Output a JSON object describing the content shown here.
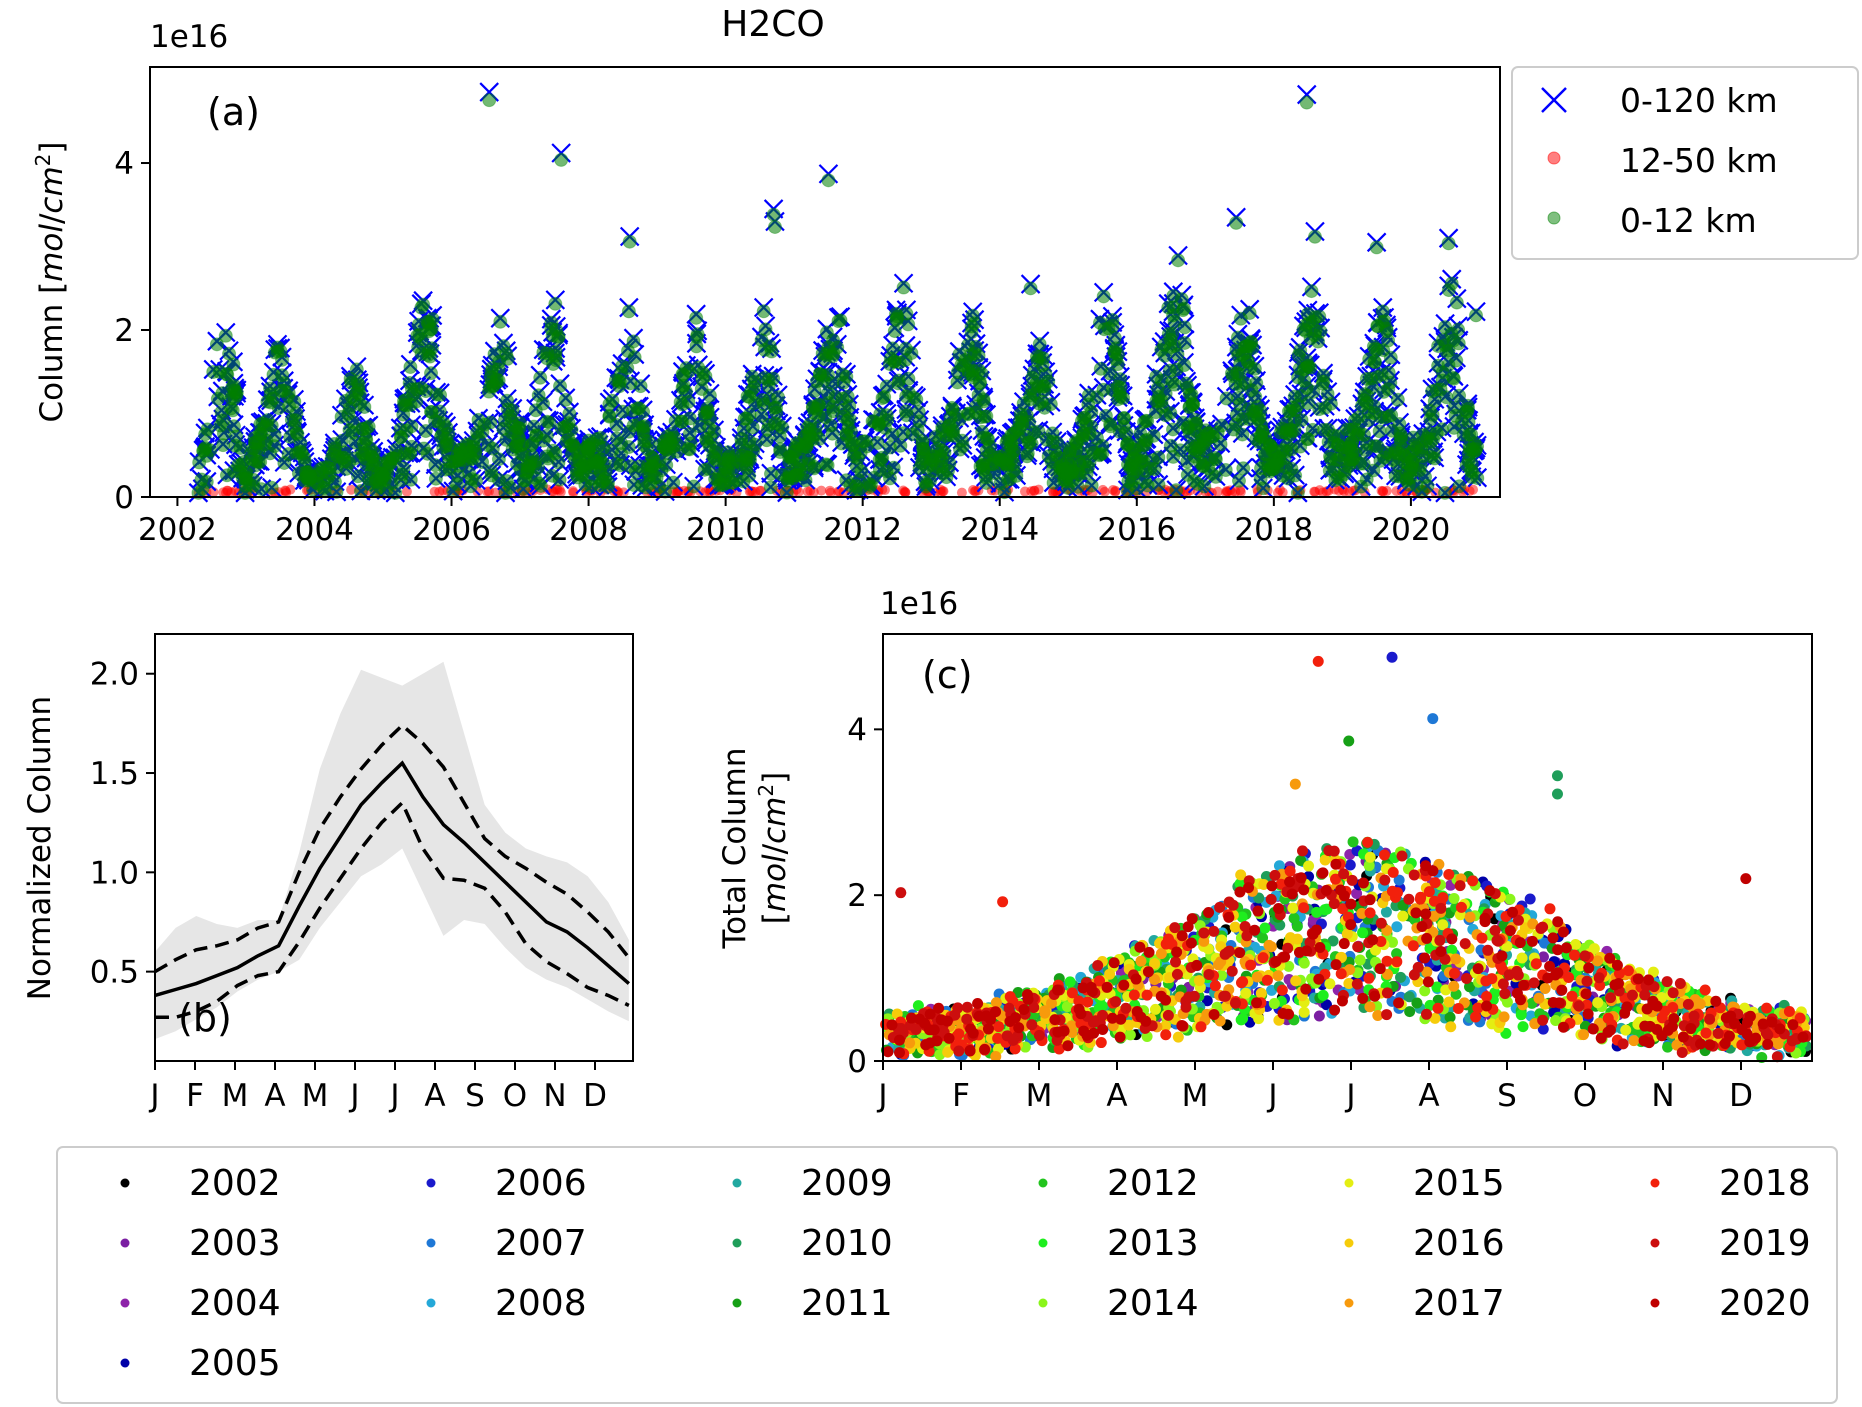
{
  "figure_title": "H2CO",
  "colors": {
    "total": "#0000ff",
    "strat": "#ff0000",
    "trop": "#008000",
    "band": "#e6e6e6"
  },
  "chart_data": [
    {
      "panel": "a",
      "type": "scatter",
      "panel_label": "(a)",
      "ylabel": "Column [mol/cm²]",
      "y_multiplier": "1e16",
      "xlim": [
        2001.6,
        2021.3
      ],
      "ylim": [
        0,
        5.15
      ],
      "xticks": [
        "2002",
        "2004",
        "2006",
        "2008",
        "2010",
        "2012",
        "2014",
        "2016",
        "2018",
        "2020"
      ],
      "yticks": [
        "0",
        "2",
        "4"
      ],
      "legend": {
        "position": "outside right",
        "entries": [
          {
            "label": "0-120 km",
            "marker": "x",
            "color": "#0000ff"
          },
          {
            "label": "12-50 km",
            "marker": "o",
            "color": "#ff0000"
          },
          {
            "label": "0-12 km",
            "marker": "o",
            "color": "#008000"
          }
        ]
      },
      "season_envelope": {
        "x": [
          2002.3,
          2002.7,
          2003.0,
          2003.5,
          2003.9,
          2004.2,
          2004.6,
          2004.9,
          2005.2,
          2005.6,
          2006.0,
          2006.3,
          2006.7,
          2007.1,
          2007.5,
          2007.8,
          2008.2,
          2008.6,
          2008.9,
          2009.2,
          2009.6,
          2009.9,
          2010.2,
          2010.6,
          2010.9,
          2011.2,
          2011.6,
          2011.9,
          2012.2,
          2012.6,
          2012.9,
          2013.2,
          2013.6,
          2013.9,
          2014.2,
          2014.6,
          2014.9,
          2015.2,
          2015.6,
          2015.9,
          2016.2,
          2016.6,
          2016.9,
          2017.2,
          2017.6,
          2017.9,
          2018.2,
          2018.6,
          2018.9,
          2019.2,
          2019.6,
          2019.9,
          2020.2,
          2020.6,
          2020.9
        ],
        "y": [
          0.5,
          2.6,
          0.3,
          2.0,
          0.3,
          0.4,
          1.7,
          0.4,
          0.6,
          2.8,
          0.5,
          0.7,
          2.2,
          0.5,
          2.5,
          0.6,
          0.8,
          2.3,
          0.5,
          0.9,
          2.3,
          0.4,
          0.8,
          2.4,
          0.5,
          0.9,
          2.6,
          0.6,
          1.0,
          2.8,
          0.6,
          0.9,
          2.5,
          0.5,
          0.8,
          2.1,
          0.4,
          0.9,
          2.8,
          0.6,
          1.1,
          3.0,
          0.7,
          1.0,
          2.5,
          0.6,
          1.0,
          2.8,
          0.7,
          1.0,
          2.5,
          0.6,
          0.9,
          3.0,
          0.7
        ]
      },
      "outliers": [
        {
          "x": 2006.55,
          "y": 4.85
        },
        {
          "x": 2007.6,
          "y": 4.12
        },
        {
          "x": 2008.6,
          "y": 3.12
        },
        {
          "x": 2010.7,
          "y": 3.45
        },
        {
          "x": 2010.72,
          "y": 3.3
        },
        {
          "x": 2011.5,
          "y": 3.87
        },
        {
          "x": 2014.45,
          "y": 2.55
        },
        {
          "x": 2017.45,
          "y": 3.35
        },
        {
          "x": 2018.48,
          "y": 4.82
        },
        {
          "x": 2018.6,
          "y": 3.18
        },
        {
          "x": 2019.5,
          "y": 3.05
        },
        {
          "x": 2020.55,
          "y": 3.1
        },
        {
          "x": 2020.95,
          "y": 2.22
        }
      ],
      "strat_level": 0.05
    },
    {
      "panel": "b",
      "type": "line",
      "panel_label": "(b)",
      "ylabel": "Normalized Column",
      "xlim": [
        0,
        11.6
      ],
      "ylim": [
        0.05,
        2.2
      ],
      "xticks": [
        "J",
        "F",
        "M",
        "A",
        "M",
        "J",
        "J",
        "A",
        "S",
        "O",
        "N",
        "D"
      ],
      "yticks": [
        "0.5",
        "1.0",
        "1.5",
        "2.0"
      ],
      "x": [
        0,
        0.5,
        1,
        1.5,
        2,
        2.5,
        3,
        3.5,
        4,
        4.5,
        5,
        5.5,
        6,
        6.5,
        7,
        7.5,
        8,
        8.5,
        9,
        9.5,
        10,
        10.5,
        11,
        11.5
      ],
      "series": [
        {
          "role": "mean",
          "style": "solid",
          "values": [
            0.38,
            0.41,
            0.44,
            0.48,
            0.52,
            0.58,
            0.63,
            0.83,
            1.02,
            1.18,
            1.34,
            1.45,
            1.55,
            1.38,
            1.24,
            1.15,
            1.05,
            0.95,
            0.85,
            0.75,
            0.7,
            0.62,
            0.53,
            0.44
          ]
        },
        {
          "role": "upper",
          "style": "dashed",
          "values": [
            0.5,
            0.56,
            0.61,
            0.63,
            0.66,
            0.72,
            0.75,
            1.0,
            1.22,
            1.38,
            1.52,
            1.64,
            1.74,
            1.65,
            1.53,
            1.35,
            1.17,
            1.08,
            1.02,
            0.95,
            0.89,
            0.8,
            0.7,
            0.57
          ]
        },
        {
          "role": "lower",
          "style": "dashed",
          "values": [
            0.27,
            0.27,
            0.3,
            0.35,
            0.43,
            0.48,
            0.5,
            0.65,
            0.82,
            0.97,
            1.12,
            1.25,
            1.35,
            1.12,
            0.97,
            0.96,
            0.92,
            0.8,
            0.64,
            0.55,
            0.49,
            0.42,
            0.38,
            0.33
          ]
        }
      ],
      "band_upper": [
        0.6,
        0.72,
        0.78,
        0.74,
        0.72,
        0.76,
        0.76,
        1.1,
        1.52,
        1.8,
        2.02,
        1.98,
        1.94,
        2.0,
        2.06,
        1.7,
        1.34,
        1.2,
        1.12,
        1.08,
        1.05,
        0.98,
        0.85,
        0.66
      ],
      "band_lower": [
        0.16,
        0.2,
        0.26,
        0.32,
        0.4,
        0.46,
        0.5,
        0.56,
        0.72,
        0.85,
        0.98,
        1.04,
        1.12,
        0.9,
        0.68,
        0.76,
        0.74,
        0.62,
        0.52,
        0.46,
        0.42,
        0.36,
        0.3,
        0.25
      ]
    },
    {
      "panel": "c",
      "type": "scatter",
      "panel_label": "(c)",
      "ylabel": "Total Column [mol/cm²]",
      "y_multiplier": "1e16",
      "xlim": [
        0,
        365
      ],
      "ylim": [
        0,
        5.15
      ],
      "xticks": [
        "J",
        "F",
        "M",
        "A",
        "M",
        "J",
        "J",
        "A",
        "S",
        "O",
        "N",
        "D"
      ],
      "yticks": [
        "0",
        "2",
        "4"
      ],
      "seasonal_peak_day": 190,
      "points_per_year": 130,
      "highlights": [
        {
          "day": 171,
          "y": 4.82,
          "year": "2018"
        },
        {
          "day": 200,
          "y": 4.87,
          "year": "2006"
        },
        {
          "day": 216,
          "y": 4.13,
          "year": "2007"
        },
        {
          "day": 183,
          "y": 3.86,
          "year": "2011"
        },
        {
          "day": 265,
          "y": 3.44,
          "year": "2010"
        },
        {
          "day": 265,
          "y": 3.22,
          "year": "2010"
        },
        {
          "day": 162,
          "y": 3.34,
          "year": "2017"
        },
        {
          "day": 7,
          "y": 2.03,
          "year": "2019"
        },
        {
          "day": 47,
          "y": 1.92,
          "year": "2018"
        },
        {
          "day": 339,
          "y": 2.2,
          "year": "2020"
        }
      ],
      "years": [
        {
          "year": "2002",
          "color": "#000000"
        },
        {
          "year": "2003",
          "color": "#7b1fa2"
        },
        {
          "year": "2004",
          "color": "#8e24aa"
        },
        {
          "year": "2005",
          "color": "#0000a8"
        },
        {
          "year": "2006",
          "color": "#1a1acc"
        },
        {
          "year": "2007",
          "color": "#1e78d6"
        },
        {
          "year": "2008",
          "color": "#24a8d8"
        },
        {
          "year": "2009",
          "color": "#22a8a0"
        },
        {
          "year": "2010",
          "color": "#1f9e5a"
        },
        {
          "year": "2011",
          "color": "#16a016"
        },
        {
          "year": "2012",
          "color": "#22c41e"
        },
        {
          "year": "2013",
          "color": "#1eee1e"
        },
        {
          "year": "2014",
          "color": "#8af51a"
        },
        {
          "year": "2015",
          "color": "#e4ee12"
        },
        {
          "year": "2016",
          "color": "#f6cc0a"
        },
        {
          "year": "2017",
          "color": "#f79a0c"
        },
        {
          "year": "2018",
          "color": "#f2200c"
        },
        {
          "year": "2019",
          "color": "#cc0e0e"
        },
        {
          "year": "2020",
          "color": "#c00000"
        }
      ]
    }
  ]
}
